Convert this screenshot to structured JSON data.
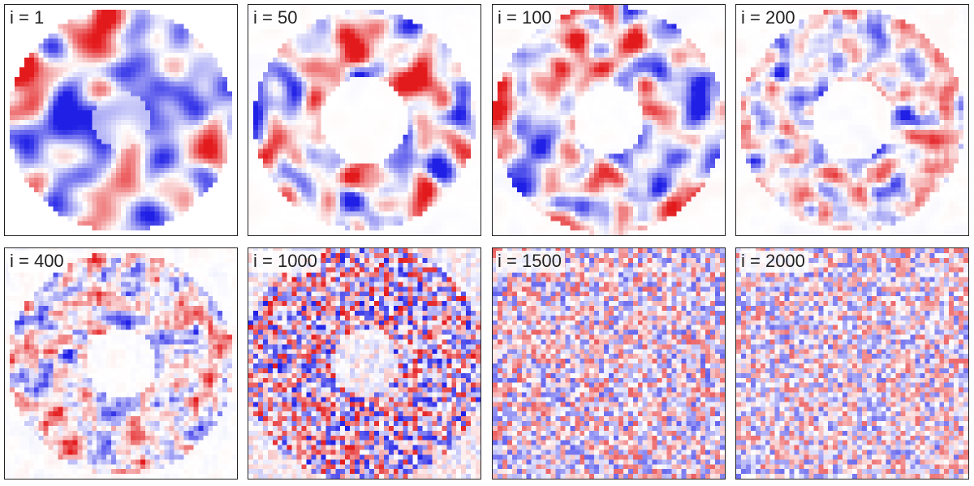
{
  "colors": {
    "positive": "#e31a1c",
    "negative": "#1f1fe6",
    "neutral": "#ffffff",
    "frame": "#222222"
  },
  "panels": [
    {
      "label": "i = 1"
    },
    {
      "label": "i = 50"
    },
    {
      "label": "i = 100"
    },
    {
      "label": "i = 200"
    },
    {
      "label": "i = 400"
    },
    {
      "label": "i = 1000"
    },
    {
      "label": "i = 1500"
    },
    {
      "label": "i = 2000"
    }
  ]
}
